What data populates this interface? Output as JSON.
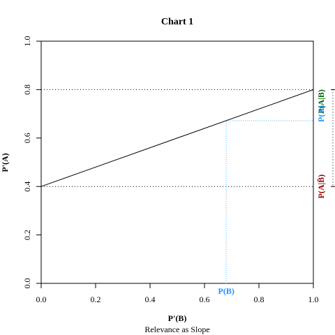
{
  "chart_data": {
    "type": "line",
    "title": "Chart 1",
    "xlabel": "P'(B)",
    "ylabel": "P'(A)",
    "subtitle": "Relevance as Slope",
    "xlim": [
      0,
      1
    ],
    "ylim": [
      0,
      1
    ],
    "x_ticks": [
      "0.0",
      "0.2",
      "0.4",
      "0.6",
      "0.8",
      "1.0"
    ],
    "y_ticks": [
      "0.0",
      "0.2",
      "0.4",
      "0.6",
      "0.8",
      "1.0"
    ],
    "x_tick_values": [
      0,
      0.2,
      0.4,
      0.6,
      0.8,
      1.0
    ],
    "y_tick_values": [
      0,
      0.2,
      0.4,
      0.6,
      0.8,
      1.0
    ],
    "grid": false,
    "series": [
      {
        "x": [
          0,
          1
        ],
        "y": [
          0.4,
          0.8
        ],
        "color": "#000000"
      }
    ],
    "reference_lines": {
      "p_a_given_b": 0.8,
      "p_a_given_not_b": 0.4,
      "p_b": 0.68,
      "p_a": 0.672
    },
    "annotations": [
      {
        "text": "P(A|B)",
        "value": 0.8,
        "color": "#006400"
      },
      {
        "text": "P(A)",
        "value": 0.672,
        "color": "#1E90FF"
      },
      {
        "text": "P(A|B̄)",
        "value": 0.4,
        "color": "#8B0000"
      },
      {
        "text": "P(B)",
        "value": 0.68,
        "color": "#1E90FF"
      }
    ],
    "colors": {
      "line": "#000000",
      "dotted_black": "#000000",
      "dotted_blue": "#87CEFA",
      "label_green": "#006400",
      "label_blue": "#1E90FF",
      "label_red": "#8B0000"
    }
  }
}
